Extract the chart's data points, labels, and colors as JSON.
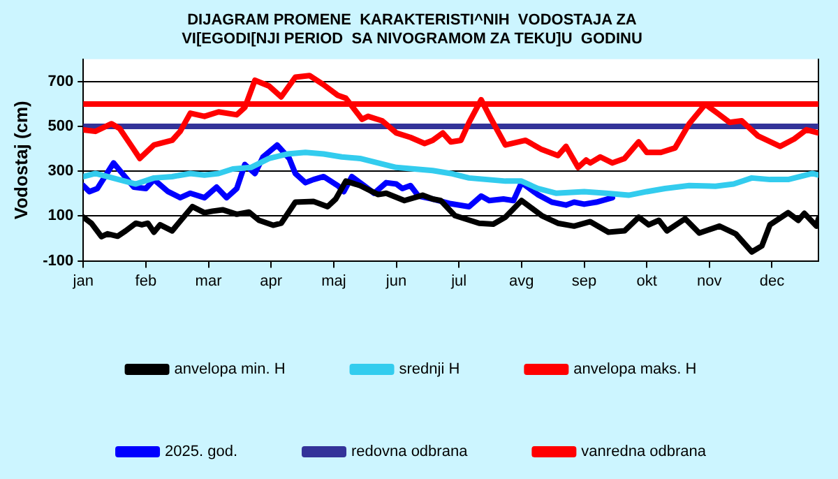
{
  "chart_data": {
    "type": "line",
    "title": "DIJAGRAM PROMENE  KARAKTERISTI^NIH  VODOSTAJA ZA VI[EGODI[NJI PERIOD  SA NIVOGRAMOM ZA TEKU]U  GODINU",
    "ylabel": "Vodostaj (cm)",
    "xlim": [
      "--01-01",
      "--12-31"
    ],
    "xticks": [
      {
        "value": "--01-01",
        "label": "jan"
      },
      {
        "value": "--02-01",
        "label": "feb"
      },
      {
        "value": "--03-04",
        "label": "mar"
      },
      {
        "value": "--04-04",
        "label": "apr"
      },
      {
        "value": "--05-05",
        "label": "maj"
      },
      {
        "value": "--06-05",
        "label": "jun"
      },
      {
        "value": "--07-06",
        "label": "jul"
      },
      {
        "value": "--08-06",
        "label": "avg"
      },
      {
        "value": "--09-06",
        "label": "sep"
      },
      {
        "value": "--10-07",
        "label": "okt"
      },
      {
        "value": "--11-07",
        "label": "nov"
      },
      {
        "value": "--12-08",
        "label": "dec"
      }
    ],
    "ylim": [
      -100,
      800
    ],
    "yticks": [
      -100,
      100,
      300,
      500,
      700
    ],
    "grid": "y",
    "legend": "bottom",
    "marker": "none",
    "line_style": "solid",
    "series": [
      {
        "name": "anvelopa min. H",
        "color": "#000000",
        "x": [
          "--01-01",
          "--01-05",
          "--01-10",
          "--01-13",
          "--01-18",
          "--01-22",
          "--01-27",
          "--01-30",
          "--02-02",
          "--02-05",
          "--02-08",
          "--02-14",
          "--02-19",
          "--02-24",
          "--03-02",
          "--03-06",
          "--03-11",
          "--03-18",
          "--03-24",
          "--03-29",
          "--04-05",
          "--04-09",
          "--04-16",
          "--04-25",
          "--05-02",
          "--05-06",
          "--05-11",
          "--05-18",
          "--05-27",
          "--05-31",
          "--06-09",
          "--06-18",
          "--06-23",
          "--06-27",
          "--07-04",
          "--07-16",
          "--07-23",
          "--07-29",
          "--08-06",
          "--08-16",
          "--08-24",
          "--09-01",
          "--09-09",
          "--09-18",
          "--09-26",
          "--10-03",
          "--10-08",
          "--10-13",
          "--10-17",
          "--10-26",
          "--11-02",
          "--11-12",
          "--11-20",
          "--11-28",
          "--12-03",
          "--12-07",
          "--12-16",
          "--12-21",
          "--12-24",
          "--12-30",
          "--12-31"
        ],
        "values": [
          95,
          68,
          8,
          21,
          10,
          34,
          68,
          61,
          68,
          28,
          61,
          34,
          88,
          142,
          115,
          122,
          128,
          108,
          118,
          81,
          59,
          68,
          162,
          165,
          142,
          176,
          256,
          236,
          196,
          202,
          169,
          193,
          176,
          169,
          102,
          68,
          64,
          95,
          169,
          102,
          68,
          55,
          75,
          28,
          34,
          95,
          61,
          81,
          34,
          88,
          24,
          55,
          21,
          -60,
          -33,
          61,
          115,
          81,
          112,
          55,
          88
        ]
      },
      {
        "name": "srednji H",
        "color": "#33ccee",
        "x": [
          "--01-01",
          "--01-07",
          "--01-13",
          "--01-27",
          "--02-05",
          "--02-14",
          "--02-23",
          "--03-02",
          "--03-09",
          "--03-16",
          "--03-25",
          "--04-03",
          "--04-12",
          "--04-21",
          "--04-30",
          "--05-09",
          "--05-18",
          "--05-27",
          "--06-05",
          "--06-14",
          "--06-23",
          "--07-02",
          "--07-11",
          "--07-20",
          "--07-29",
          "--08-06",
          "--08-14",
          "--08-23",
          "--09-06",
          "--09-17",
          "--09-28",
          "--10-07",
          "--10-16",
          "--10-28",
          "--11-10",
          "--11-19",
          "--11-28",
          "--12-07",
          "--12-16",
          "--12-28",
          "--12-31"
        ],
        "values": [
          276,
          290,
          276,
          243,
          270,
          276,
          290,
          283,
          290,
          310,
          317,
          357,
          377,
          384,
          377,
          364,
          357,
          337,
          317,
          310,
          303,
          290,
          270,
          263,
          256,
          256,
          223,
          202,
          209,
          202,
          193,
          209,
          223,
          236,
          233,
          243,
          270,
          263,
          263,
          290,
          283
        ]
      },
      {
        "name": "anvelopa maks. H",
        "color": "#ff0000",
        "x": [
          "--01-01",
          "--01-07",
          "--01-15",
          "--01-19",
          "--01-25",
          "--01-29",
          "--02-05",
          "--02-14",
          "--02-18",
          "--02-23",
          "--03-02",
          "--03-09",
          "--03-18",
          "--03-22",
          "--03-27",
          "--04-03",
          "--04-09",
          "--04-16",
          "--04-23",
          "--04-30",
          "--05-07",
          "--05-11",
          "--05-19",
          "--05-22",
          "--05-29",
          "--06-05",
          "--06-12",
          "--06-19",
          "--06-23",
          "--06-28",
          "--07-02",
          "--07-07",
          "--07-11",
          "--07-17",
          "--07-22",
          "--07-29",
          "--08-08",
          "--08-16",
          "--08-24",
          "--08-28",
          "--09-03",
          "--09-07",
          "--09-09",
          "--09-14",
          "--09-20",
          "--09-26",
          "--10-03",
          "--10-07",
          "--10-14",
          "--10-21",
          "--10-28",
          "--11-05",
          "--11-11",
          "--11-17",
          "--11-23",
          "--12-01",
          "--12-12",
          "--12-19",
          "--12-25",
          "--12-31"
        ],
        "values": [
          485,
          478,
          512,
          491,
          411,
          357,
          417,
          438,
          478,
          559,
          545,
          565,
          552,
          585,
          706,
          680,
          632,
          720,
          727,
          686,
          639,
          626,
          532,
          545,
          525,
          471,
          451,
          424,
          438,
          471,
          431,
          438,
          518,
          619,
          532,
          417,
          438,
          397,
          370,
          411,
          317,
          350,
          337,
          364,
          337,
          357,
          431,
          384,
          384,
          404,
          512,
          599,
          559,
          518,
          525,
          458,
          411,
          444,
          485,
          471
        ]
      },
      {
        "name": "2025. god.",
        "color": "#0000ff",
        "x": [
          "--01-01",
          "--01-04",
          "--01-08",
          "--01-16",
          "--01-21",
          "--01-26",
          "--02-01",
          "--02-05",
          "--02-12",
          "--02-18",
          "--02-23",
          "--03-02",
          "--03-08",
          "--03-13",
          "--03-18",
          "--03-22",
          "--03-27",
          "--03-31",
          "--04-07",
          "--04-13",
          "--04-16",
          "--04-21",
          "--04-25",
          "--04-30",
          "--05-07",
          "--05-10",
          "--05-14",
          "--05-20",
          "--05-25",
          "--05-31",
          "--06-05",
          "--06-08",
          "--06-12",
          "--06-16",
          "--06-23",
          "--07-02",
          "--07-11",
          "--07-17",
          "--07-21",
          "--07-28",
          "--08-02",
          "--08-06",
          "--08-14",
          "--08-21",
          "--08-28",
          "--09-01",
          "--09-06",
          "--09-12",
          "--09-20"
        ],
        "values": [
          236,
          209,
          223,
          337,
          283,
          229,
          223,
          263,
          209,
          182,
          202,
          182,
          229,
          182,
          223,
          330,
          290,
          364,
          417,
          357,
          290,
          249,
          263,
          276,
          236,
          209,
          276,
          236,
          202,
          249,
          243,
          223,
          236,
          189,
          176,
          155,
          142,
          189,
          169,
          176,
          169,
          249,
          196,
          162,
          149,
          162,
          153,
          162,
          182
        ]
      },
      {
        "name": "redovna odbrana",
        "color": "#333399",
        "x": [
          "--01-01",
          "--12-31"
        ],
        "values": [
          500,
          500
        ]
      },
      {
        "name": "vanredna odbrana",
        "color": "#ff0000",
        "x": [
          "--01-01",
          "--12-31"
        ],
        "values": [
          600,
          600
        ]
      }
    ]
  }
}
